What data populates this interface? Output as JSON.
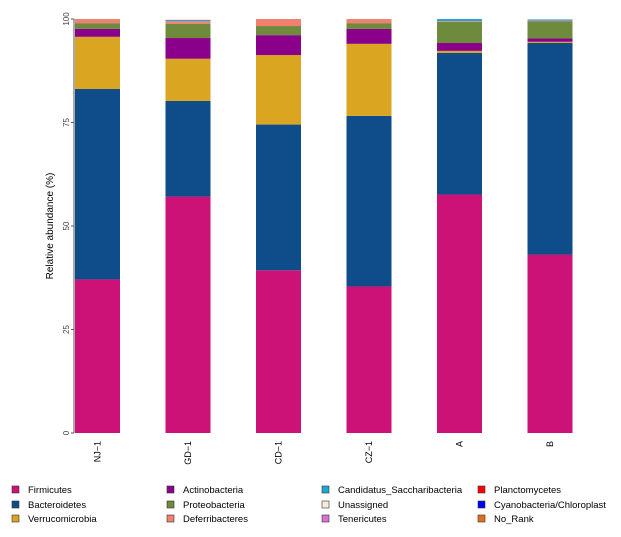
{
  "chart_data": {
    "type": "bar",
    "stacked": true,
    "title": "",
    "xlabel": "",
    "ylabel": "Relative abundance (%)",
    "ylim": [
      0,
      100
    ],
    "yticks": [
      0,
      25,
      50,
      75,
      100
    ],
    "grid": false,
    "legend_position": "bottom",
    "categories": [
      "NJ−1",
      "GD−1",
      "CD−1",
      "CZ−1",
      "A",
      "B"
    ],
    "series": [
      {
        "name": "Firmicutes",
        "color": "#CC1177",
        "values": [
          37.1,
          57.1,
          39.3,
          35.4,
          57.6,
          43.1
        ]
      },
      {
        "name": "Bacteroidetes",
        "color": "#0F4C8A",
        "values": [
          46.0,
          23.1,
          35.2,
          41.2,
          34.2,
          51.1
        ]
      },
      {
        "name": "Verrucomicrobia",
        "color": "#DAA520",
        "values": [
          12.6,
          10.2,
          16.8,
          17.4,
          0.5,
          0.3
        ]
      },
      {
        "name": "Actinobacteria",
        "color": "#8B008B",
        "values": [
          1.9,
          5.0,
          4.8,
          3.6,
          1.9,
          0.8
        ]
      },
      {
        "name": "Proteobacteria",
        "color": "#6E8B3D",
        "values": [
          1.4,
          3.4,
          2.2,
          1.4,
          5.1,
          4.1
        ]
      },
      {
        "name": "Deferribacteres",
        "color": "#F08070",
        "values": [
          1.0,
          0.7,
          1.7,
          1.0,
          0.2,
          0.2
        ]
      },
      {
        "name": "Candidatus_Saccharibacteria",
        "color": "#1EA7D6",
        "values": [
          0,
          0.3,
          0,
          0,
          0.5,
          0.3
        ]
      },
      {
        "name": "Unassigned",
        "color": "#FAEBD7",
        "values": [
          0,
          0.2,
          0,
          0,
          0,
          0.1
        ]
      },
      {
        "name": "Tenericutes",
        "color": "#DA70D6",
        "values": [
          0,
          0,
          0,
          0,
          0,
          0
        ]
      },
      {
        "name": "Planctomycetes",
        "color": "#FF0000",
        "values": [
          0,
          0,
          0,
          0,
          0,
          0
        ]
      },
      {
        "name": "Cyanobacteria/Chloroplast",
        "color": "#0000FF",
        "values": [
          0,
          0,
          0,
          0,
          0,
          0
        ]
      },
      {
        "name": "No_Rank",
        "color": "#E36E1A",
        "values": [
          0,
          0,
          0,
          0,
          0,
          0
        ]
      }
    ]
  }
}
